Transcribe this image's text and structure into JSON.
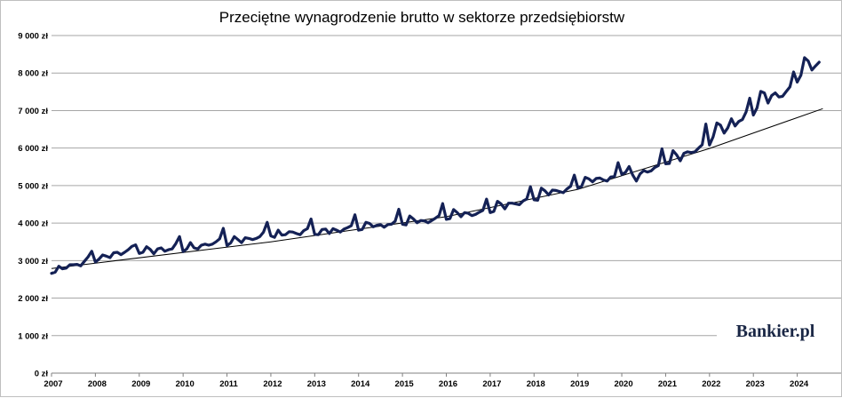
{
  "chart_data": {
    "type": "line",
    "title": "Przeciętne wynagrodzenie brutto w sektorze przedsiębiorstw",
    "xlabel": "",
    "ylabel": "",
    "ylim": [
      0,
      9000
    ],
    "y_ticks": [
      "0 zł",
      "1 000 zł",
      "2 000 zł",
      "3 000 zł",
      "4 000 zł",
      "5 000 zł",
      "6 000 zł",
      "7 000 zł",
      "8 000 zł",
      "9 000 zł"
    ],
    "x_ticks": [
      "2007",
      "2008",
      "2009",
      "2010",
      "2011",
      "2012",
      "2013",
      "2014",
      "2015",
      "2016",
      "2017",
      "2018",
      "2019",
      "2020",
      "2021",
      "2022",
      "2023",
      "2024"
    ],
    "grid": true,
    "colors": {
      "series": "#142155",
      "trend": "#000000",
      "grid": "#a6a6a6",
      "brand": "#1a2745"
    },
    "series": [
      {
        "x_start": "2007-01",
        "interval": "month",
        "values": [
          2660,
          2690,
          2850,
          2780,
          2800,
          2890,
          2890,
          2900,
          2860,
          2980,
          3100,
          3250,
          2960,
          3040,
          3150,
          3120,
          3080,
          3210,
          3220,
          3160,
          3220,
          3290,
          3380,
          3420,
          3190,
          3220,
          3370,
          3300,
          3180,
          3310,
          3340,
          3250,
          3290,
          3310,
          3450,
          3640,
          3240,
          3310,
          3480,
          3340,
          3310,
          3410,
          3440,
          3410,
          3440,
          3500,
          3580,
          3860,
          3400,
          3470,
          3640,
          3560,
          3480,
          3610,
          3590,
          3560,
          3590,
          3640,
          3760,
          4020,
          3660,
          3620,
          3810,
          3680,
          3690,
          3770,
          3760,
          3720,
          3690,
          3800,
          3850,
          4110,
          3700,
          3690,
          3830,
          3840,
          3720,
          3850,
          3810,
          3760,
          3840,
          3880,
          3930,
          4220,
          3810,
          3830,
          4020,
          3990,
          3900,
          3940,
          3960,
          3890,
          3960,
          3970,
          4050,
          4370,
          3970,
          3950,
          4190,
          4110,
          4010,
          4070,
          4060,
          4010,
          4070,
          4130,
          4200,
          4520,
          4100,
          4120,
          4360,
          4280,
          4170,
          4280,
          4260,
          4200,
          4230,
          4290,
          4340,
          4640,
          4280,
          4310,
          4580,
          4510,
          4380,
          4530,
          4530,
          4510,
          4490,
          4590,
          4640,
          4970,
          4620,
          4610,
          4930,
          4860,
          4750,
          4880,
          4870,
          4840,
          4810,
          4910,
          4980,
          5280,
          4930,
          4980,
          5220,
          5180,
          5100,
          5190,
          5200,
          5150,
          5120,
          5230,
          5240,
          5610,
          5300,
          5350,
          5510,
          5280,
          5120,
          5310,
          5400,
          5360,
          5390,
          5480,
          5530,
          5980,
          5580,
          5590,
          5930,
          5820,
          5660,
          5860,
          5900,
          5880,
          5900,
          6000,
          6090,
          6640,
          6080,
          6300,
          6670,
          6610,
          6400,
          6540,
          6780,
          6590,
          6710,
          6760,
          6960,
          7330,
          6880,
          7070,
          7510,
          7470,
          7200,
          7400,
          7470,
          7360,
          7380,
          7510,
          7630,
          8030,
          7760,
          7940,
          8410,
          8320,
          8080,
          8190,
          8290
        ]
      }
    ],
    "trend": [
      {
        "x": "2007-01",
        "y": 2790
      },
      {
        "x": "2012-01",
        "y": 3500
      },
      {
        "x": "2016-01",
        "y": 4170
      },
      {
        "x": "2019-01",
        "y": 4900
      },
      {
        "x": "2022-01",
        "y": 5990
      },
      {
        "x": "2024-08",
        "y": 7050
      }
    ]
  },
  "watermark": {
    "brand": "Bankier.pl"
  }
}
